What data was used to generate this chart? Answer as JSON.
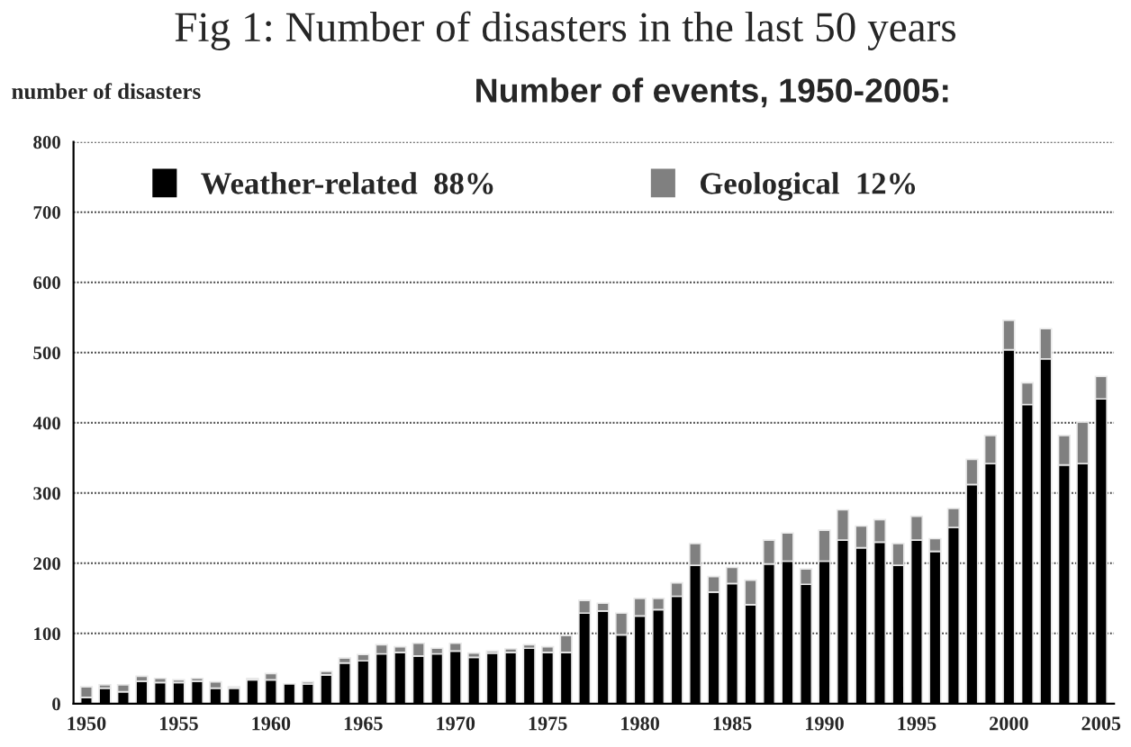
{
  "chart_data": {
    "type": "bar",
    "title": "Fig 1: Number of disasters in the last 50 years",
    "subtitle": "Number of events, 1950-2005:",
    "ylabel": "number of disasters",
    "categories": [
      "1950",
      null,
      null,
      null,
      null,
      "1955",
      null,
      null,
      null,
      null,
      "1960",
      null,
      null,
      null,
      null,
      "1965",
      null,
      null,
      null,
      null,
      "1970",
      null,
      null,
      null,
      null,
      "1975",
      null,
      null,
      null,
      null,
      "1980",
      null,
      null,
      null,
      null,
      "1985",
      null,
      null,
      null,
      null,
      "1990",
      null,
      null,
      null,
      null,
      "1995",
      null,
      null,
      null,
      null,
      "2000",
      null,
      null,
      null,
      null,
      "2005"
    ],
    "series": [
      {
        "name": "Weather-related  88%",
        "color": "#000000",
        "values": [
          9,
          22,
          17,
          32,
          30,
          30,
          32,
          22,
          22,
          34,
          34,
          28,
          28,
          41,
          58,
          61,
          71,
          73,
          68,
          71,
          75,
          66,
          72,
          73,
          79,
          73,
          73,
          129,
          132,
          98,
          125,
          134,
          153,
          197,
          159,
          171,
          141,
          199,
          203,
          170,
          203,
          233,
          222,
          230,
          197,
          233,
          217,
          251,
          312,
          342,
          504,
          426,
          491,
          340,
          342,
          434
        ]
      },
      {
        "name": "Geological  12%",
        "color": "#808080",
        "values": [
          15,
          5,
          10,
          7,
          6,
          4,
          4,
          9,
          2,
          2,
          9,
          null,
          3,
          5,
          7,
          9,
          13,
          8,
          18,
          8,
          11,
          6,
          3,
          5,
          5,
          8,
          24,
          18,
          11,
          31,
          25,
          16,
          19,
          31,
          22,
          23,
          35,
          34,
          40,
          22,
          44,
          43,
          31,
          32,
          31,
          34,
          18,
          27,
          36,
          40,
          42,
          31,
          43,
          42,
          59,
          32
        ]
      }
    ],
    "stacked": true,
    "ylim": [
      0,
      800
    ],
    "yticks": [
      0,
      100,
      200,
      300,
      400,
      500,
      600,
      700,
      800
    ],
    "grid": "y",
    "legend": "top left"
  }
}
